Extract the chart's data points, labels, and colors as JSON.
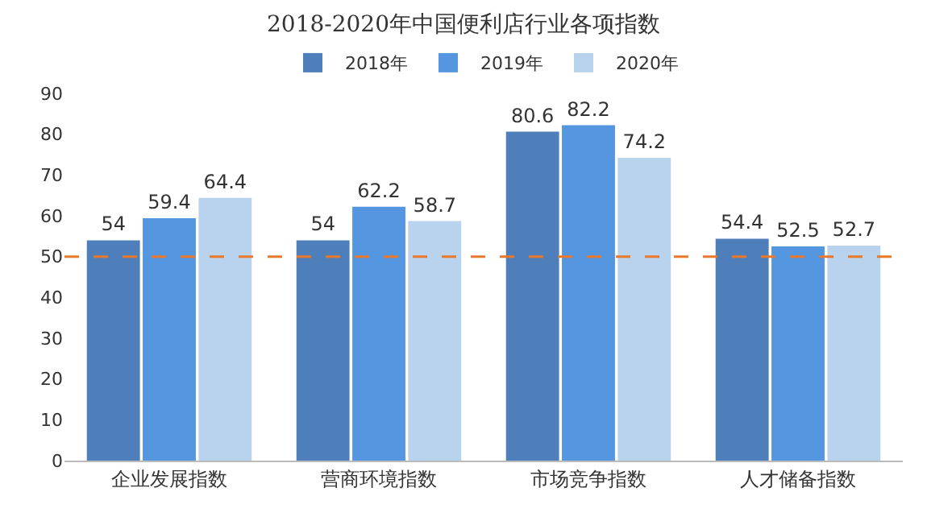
{
  "chart_data": {
    "type": "bar",
    "title": "2018-2020年中国便利店行业各项指数",
    "categories": [
      "企业发展指数",
      "营商环境指数",
      "市场竞争指数",
      "人才储备指数"
    ],
    "series": [
      {
        "name": "2018年",
        "color": "#4f7fba",
        "values": [
          54,
          54,
          80.6,
          54.4
        ]
      },
      {
        "name": "2019年",
        "color": "#5596e0",
        "values": [
          59.4,
          62.2,
          82.2,
          52.5
        ]
      },
      {
        "name": "2020年",
        "color": "#b9d3ee",
        "values": [
          64.4,
          58.7,
          74.2,
          52.7
        ]
      }
    ],
    "ylim": [
      0,
      90
    ],
    "yticks": [
      0,
      10,
      20,
      30,
      40,
      50,
      60,
      70,
      80,
      90
    ],
    "ref_lines": [
      {
        "axis": "y",
        "value": 50,
        "color": "#e8782a",
        "line_style": "dashed"
      }
    ],
    "data_labels": true,
    "legend": "top",
    "grid": false
  }
}
